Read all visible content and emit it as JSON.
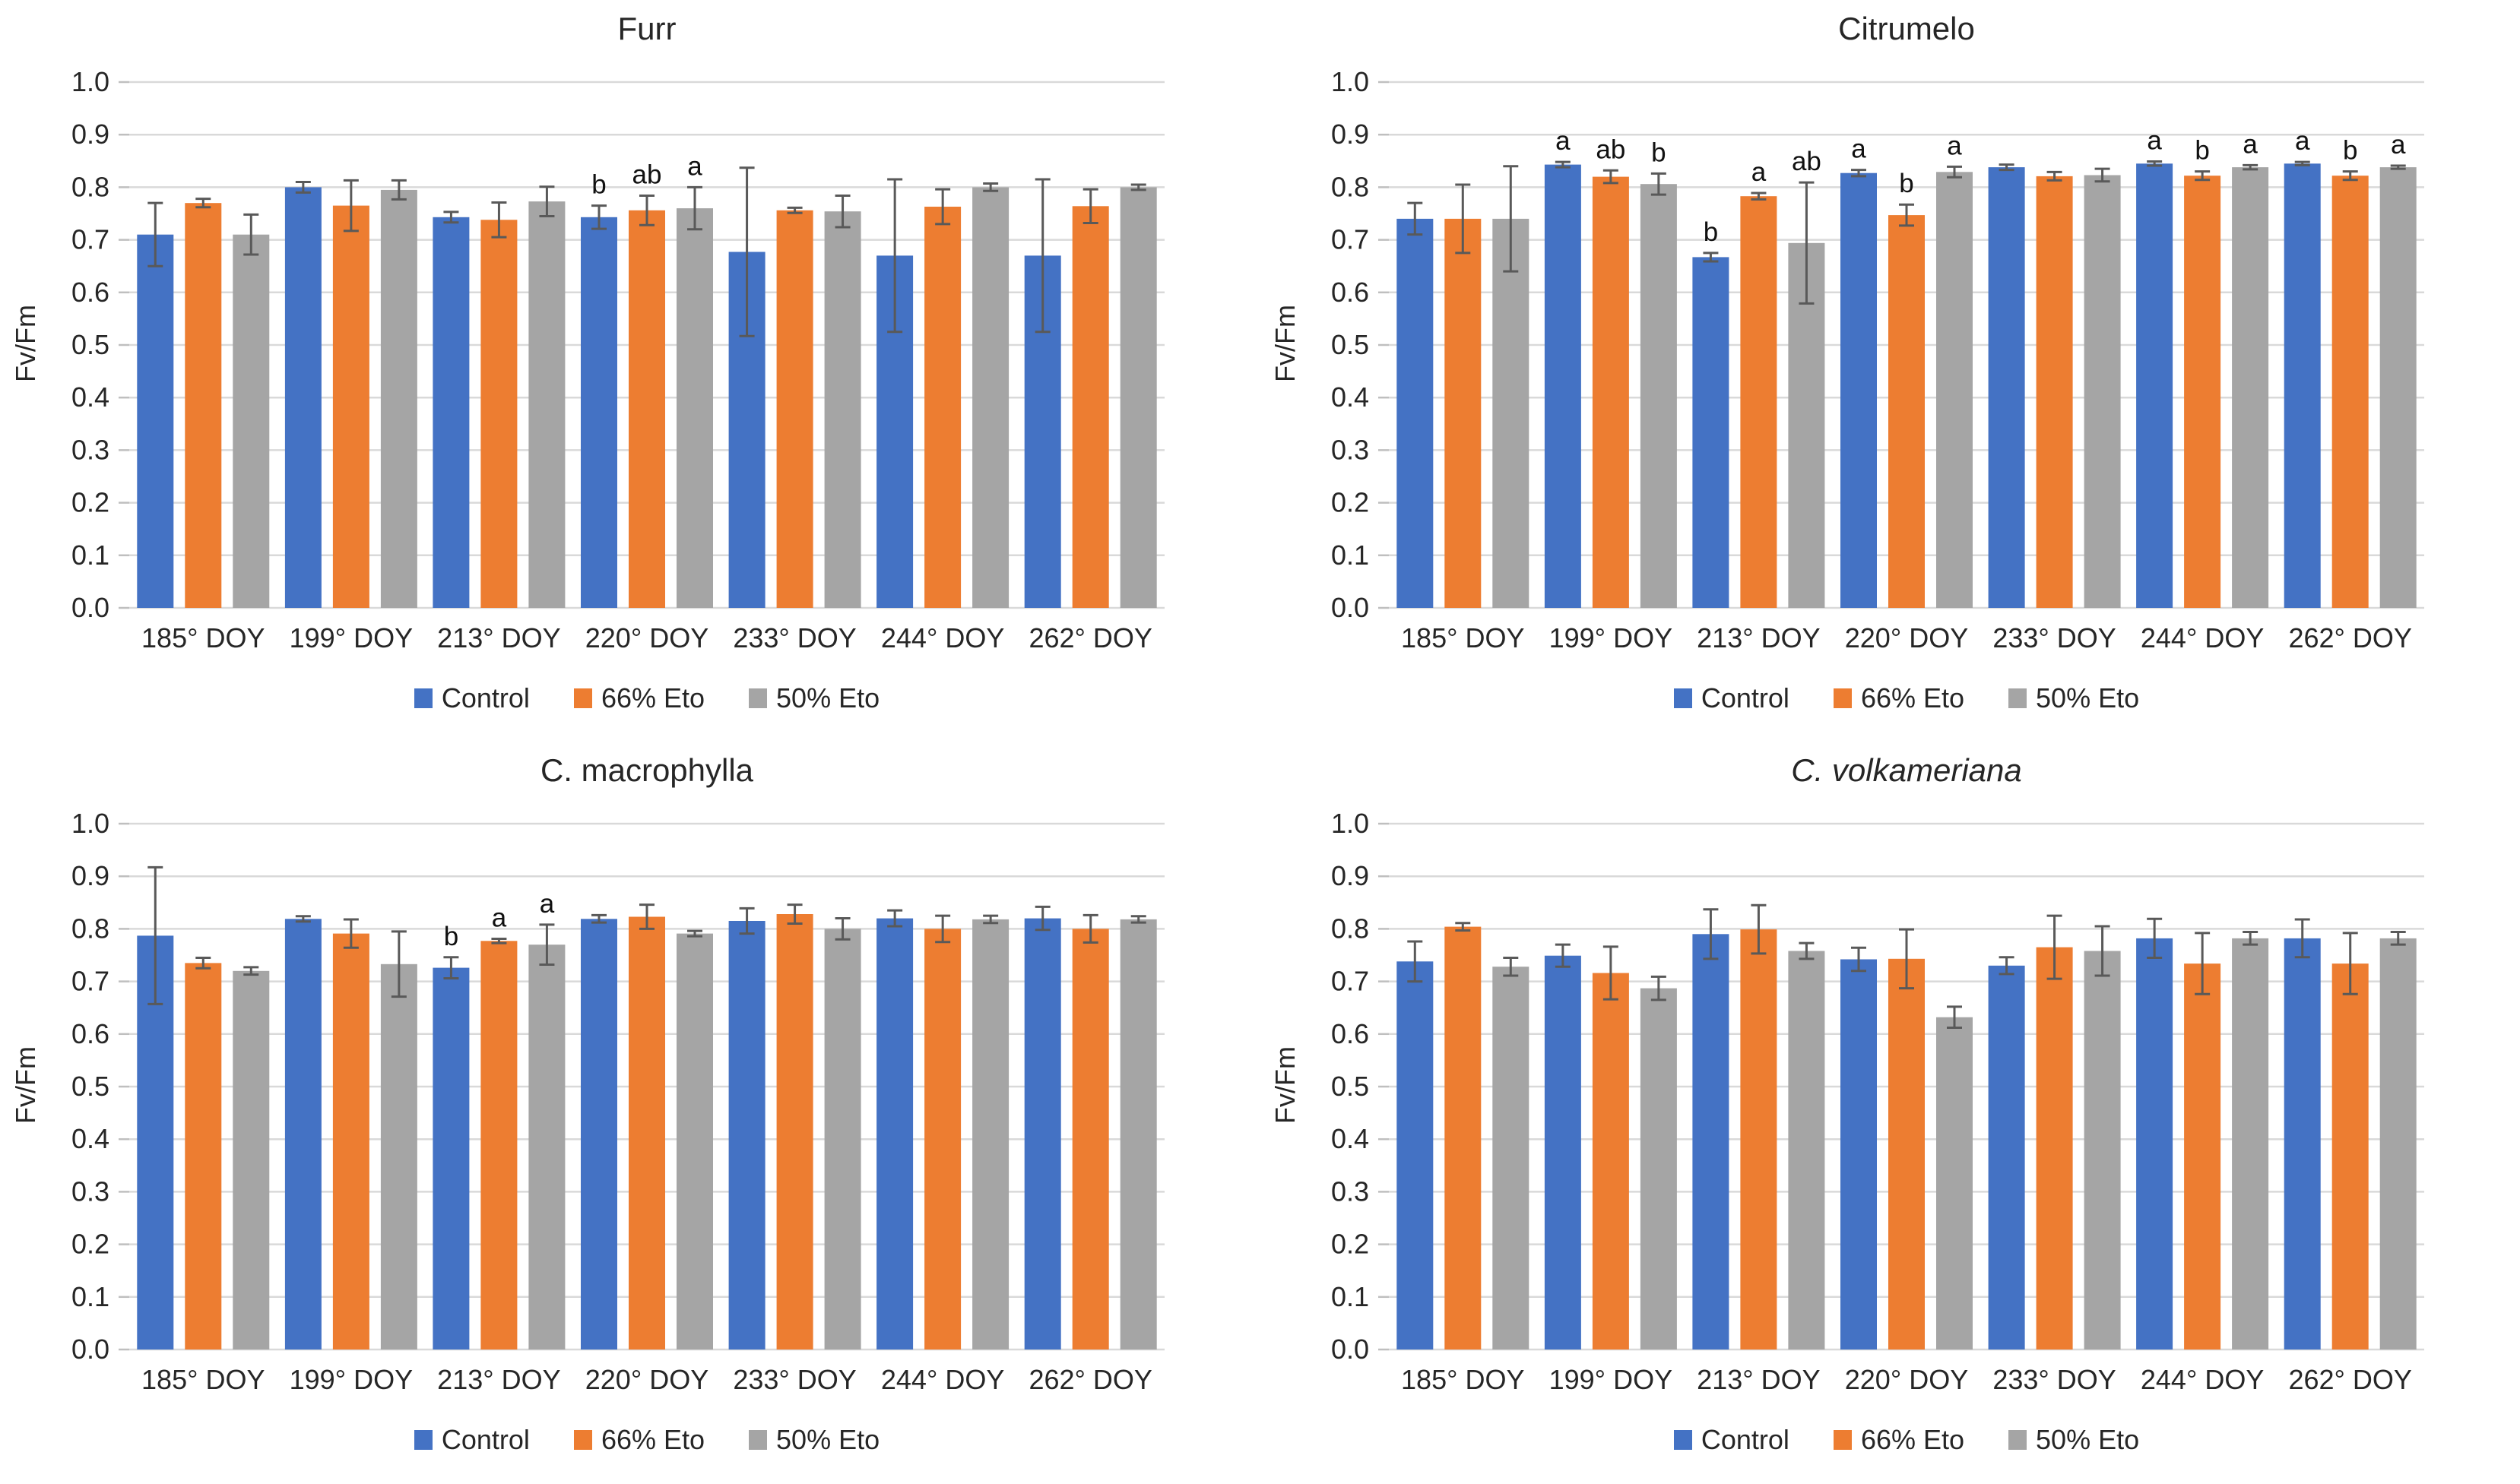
{
  "colors": {
    "control": "#4472C4",
    "eto66": "#ED7D31",
    "eto50": "#A5A5A5",
    "gridline": "#D9D9D9",
    "tick_mark": "#BFBFBF",
    "error_bar": "#595959",
    "text": "#262626"
  },
  "chart_data": [
    {
      "type": "bar",
      "title": "Furr",
      "title_italic": false,
      "ylabel": "Fv/Fm",
      "ylim": [
        0.0,
        1.0
      ],
      "ystep": 0.1,
      "grid": true,
      "legend_position": "bottom",
      "categories": [
        "185° DOY",
        "199° DOY",
        "213° DOY",
        "220° DOY",
        "233° DOY",
        "244° DOY",
        "262° DOY"
      ],
      "series": [
        {
          "name": "Control",
          "color": "#4472C4",
          "values": [
            0.71,
            0.8,
            0.743,
            0.743,
            0.677,
            0.67,
            0.67
          ],
          "errors": [
            0.06,
            0.01,
            0.01,
            0.022,
            0.16,
            0.145,
            0.145
          ],
          "letters": [
            "",
            "",
            "",
            "b",
            "",
            "",
            ""
          ]
        },
        {
          "name": "66% Eto",
          "color": "#ED7D31",
          "values": [
            0.77,
            0.765,
            0.738,
            0.756,
            0.756,
            0.763,
            0.764
          ],
          "errors": [
            0.008,
            0.048,
            0.033,
            0.028,
            0.005,
            0.033,
            0.032
          ],
          "letters": [
            "",
            "",
            "",
            "ab",
            "",
            "",
            ""
          ]
        },
        {
          "name": "50% Eto",
          "color": "#A5A5A5",
          "values": [
            0.71,
            0.795,
            0.773,
            0.76,
            0.754,
            0.8,
            0.8
          ],
          "errors": [
            0.038,
            0.018,
            0.028,
            0.04,
            0.03,
            0.007,
            0.005
          ],
          "letters": [
            "",
            "",
            "",
            "a",
            "",
            "",
            ""
          ]
        }
      ]
    },
    {
      "type": "bar",
      "title": "Citrumelo",
      "title_italic": false,
      "ylabel": "Fv/Fm",
      "ylim": [
        0.0,
        1.0
      ],
      "ystep": 0.1,
      "grid": true,
      "legend_position": "bottom",
      "categories": [
        "185° DOY",
        "199° DOY",
        "213° DOY",
        "220° DOY",
        "233° DOY",
        "244° DOY",
        "262° DOY"
      ],
      "series": [
        {
          "name": "Control",
          "color": "#4472C4",
          "values": [
            0.74,
            0.843,
            0.667,
            0.827,
            0.838,
            0.845,
            0.845
          ],
          "errors": [
            0.03,
            0.005,
            0.008,
            0.006,
            0.005,
            0.004,
            0.003
          ],
          "letters": [
            "",
            "a",
            "b",
            "a",
            "",
            "a",
            "a"
          ]
        },
        {
          "name": "66% Eto",
          "color": "#ED7D31",
          "values": [
            0.74,
            0.82,
            0.783,
            0.747,
            0.821,
            0.822,
            0.822
          ],
          "errors": [
            0.065,
            0.012,
            0.006,
            0.02,
            0.008,
            0.008,
            0.008
          ],
          "letters": [
            "",
            "ab",
            "a",
            "b",
            "",
            "b",
            "b"
          ]
        },
        {
          "name": "50% Eto",
          "color": "#A5A5A5",
          "values": [
            0.74,
            0.806,
            0.694,
            0.829,
            0.823,
            0.838,
            0.838
          ],
          "errors": [
            0.1,
            0.02,
            0.115,
            0.01,
            0.012,
            0.004,
            0.003
          ],
          "letters": [
            "",
            "b",
            "ab",
            "a",
            "",
            "a",
            "a"
          ]
        }
      ]
    },
    {
      "type": "bar",
      "title": "C. macrophylla",
      "title_italic": false,
      "ylabel": "Fv/Fm",
      "ylim": [
        0.0,
        1.0
      ],
      "ystep": 0.1,
      "grid": true,
      "legend_position": "bottom",
      "categories": [
        "185° DOY",
        "199° DOY",
        "213° DOY",
        "220° DOY",
        "233° DOY",
        "244° DOY",
        "262° DOY"
      ],
      "series": [
        {
          "name": "Control",
          "color": "#4472C4",
          "values": [
            0.787,
            0.819,
            0.726,
            0.819,
            0.815,
            0.82,
            0.82
          ],
          "errors": [
            0.13,
            0.005,
            0.02,
            0.007,
            0.024,
            0.015,
            0.022
          ],
          "letters": [
            "",
            "",
            "b",
            "",
            "",
            "",
            ""
          ]
        },
        {
          "name": "66% Eto",
          "color": "#ED7D31",
          "values": [
            0.735,
            0.791,
            0.777,
            0.823,
            0.828,
            0.8,
            0.8
          ],
          "errors": [
            0.01,
            0.027,
            0.004,
            0.023,
            0.018,
            0.025,
            0.026
          ],
          "letters": [
            "",
            "",
            "a",
            "",
            "",
            "",
            ""
          ]
        },
        {
          "name": "50% Eto",
          "color": "#A5A5A5",
          "values": [
            0.72,
            0.733,
            0.77,
            0.791,
            0.8,
            0.818,
            0.818
          ],
          "errors": [
            0.007,
            0.062,
            0.038,
            0.005,
            0.02,
            0.007,
            0.006
          ],
          "letters": [
            "",
            "",
            "a",
            "",
            "",
            "",
            ""
          ]
        }
      ]
    },
    {
      "type": "bar",
      "title": "C. volkameriana",
      "title_italic": true,
      "ylabel": "Fv/Fm",
      "ylim": [
        0.0,
        1.0
      ],
      "ystep": 0.1,
      "grid": true,
      "legend_position": "bottom",
      "categories": [
        "185° DOY",
        "199° DOY",
        "213° DOY",
        "220° DOY",
        "233° DOY",
        "244° DOY",
        "262° DOY"
      ],
      "series": [
        {
          "name": "Control",
          "color": "#4472C4",
          "values": [
            0.738,
            0.749,
            0.79,
            0.742,
            0.73,
            0.782,
            0.782
          ],
          "errors": [
            0.038,
            0.021,
            0.047,
            0.022,
            0.016,
            0.037,
            0.036
          ],
          "letters": [
            "",
            "",
            "",
            "",
            "",
            "",
            ""
          ]
        },
        {
          "name": "66% Eto",
          "color": "#ED7D31",
          "values": [
            0.804,
            0.716,
            0.799,
            0.743,
            0.765,
            0.734,
            0.734
          ],
          "errors": [
            0.007,
            0.05,
            0.046,
            0.056,
            0.06,
            0.058,
            0.058
          ],
          "letters": [
            "",
            "",
            "",
            "",
            "",
            "",
            ""
          ]
        },
        {
          "name": "50% Eto",
          "color": "#A5A5A5",
          "values": [
            0.728,
            0.687,
            0.758,
            0.632,
            0.758,
            0.782,
            0.782
          ],
          "errors": [
            0.017,
            0.022,
            0.015,
            0.02,
            0.047,
            0.012,
            0.012
          ],
          "letters": [
            "",
            "",
            "",
            "",
            "",
            "",
            ""
          ]
        }
      ]
    }
  ]
}
